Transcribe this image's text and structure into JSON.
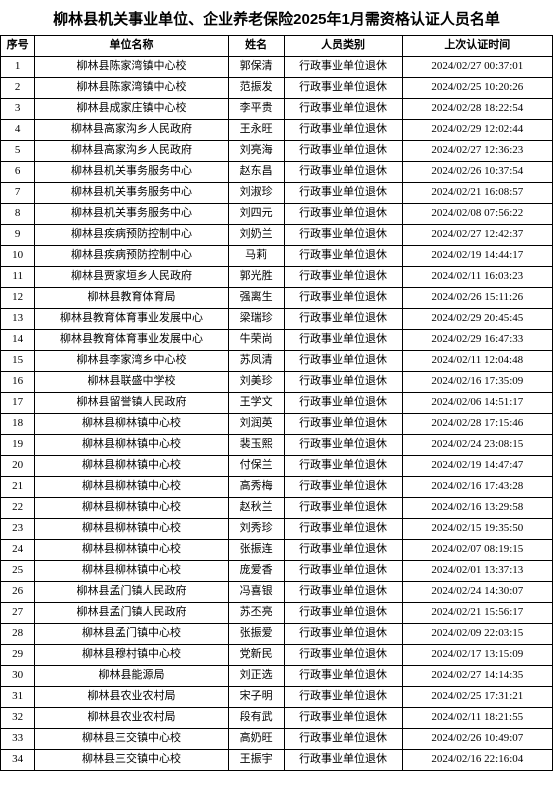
{
  "title": "柳林县机关事业单位、企业养老保险2025年1月需资格认证人员名单",
  "columns": [
    "序号",
    "单位名称",
    "姓名",
    "人员类别",
    "上次认证时间"
  ],
  "rows": [
    [
      "1",
      "柳林县陈家湾镇中心校",
      "郭保清",
      "行政事业单位退休",
      "2024/02/27 00:37:01"
    ],
    [
      "2",
      "柳林县陈家湾镇中心校",
      "范振发",
      "行政事业单位退休",
      "2024/02/25 10:20:26"
    ],
    [
      "3",
      "柳林县成家庄镇中心校",
      "李平贵",
      "行政事业单位退休",
      "2024/02/28 18:22:54"
    ],
    [
      "4",
      "柳林县高家沟乡人民政府",
      "王永旺",
      "行政事业单位退休",
      "2024/02/29 12:02:44"
    ],
    [
      "5",
      "柳林县高家沟乡人民政府",
      "刘亮海",
      "行政事业单位退休",
      "2024/02/27 12:36:23"
    ],
    [
      "6",
      "柳林县机关事务服务中心",
      "赵东昌",
      "行政事业单位退休",
      "2024/02/26 10:37:54"
    ],
    [
      "7",
      "柳林县机关事务服务中心",
      "刘淑珍",
      "行政事业单位退休",
      "2024/02/21 16:08:57"
    ],
    [
      "8",
      "柳林县机关事务服务中心",
      "刘四元",
      "行政事业单位退休",
      "2024/02/08 07:56:22"
    ],
    [
      "9",
      "柳林县疾病预防控制中心",
      "刘奶兰",
      "行政事业单位退休",
      "2024/02/27 12:42:37"
    ],
    [
      "10",
      "柳林县疾病预防控制中心",
      "马莉",
      "行政事业单位退休",
      "2024/02/19 14:44:17"
    ],
    [
      "11",
      "柳林县贾家垣乡人民政府",
      "郭光胜",
      "行政事业单位退休",
      "2024/02/11 16:03:23"
    ],
    [
      "12",
      "柳林县教育体育局",
      "强离生",
      "行政事业单位退休",
      "2024/02/26 15:11:26"
    ],
    [
      "13",
      "柳林县教育体育事业发展中心",
      "梁瑞珍",
      "行政事业单位退休",
      "2024/02/29 20:45:45"
    ],
    [
      "14",
      "柳林县教育体育事业发展中心",
      "牛荣尚",
      "行政事业单位退休",
      "2024/02/29 16:47:33"
    ],
    [
      "15",
      "柳林县李家湾乡中心校",
      "苏凤清",
      "行政事业单位退休",
      "2024/02/11 12:04:48"
    ],
    [
      "16",
      "柳林县联盛中学校",
      "刘美珍",
      "行政事业单位退休",
      "2024/02/16 17:35:09"
    ],
    [
      "17",
      "柳林县留誉镇人民政府",
      "王学文",
      "行政事业单位退休",
      "2024/02/06 14:51:17"
    ],
    [
      "18",
      "柳林县柳林镇中心校",
      "刘润英",
      "行政事业单位退休",
      "2024/02/28 17:15:46"
    ],
    [
      "19",
      "柳林县柳林镇中心校",
      "裴玉熙",
      "行政事业单位退休",
      "2024/02/24 23:08:15"
    ],
    [
      "20",
      "柳林县柳林镇中心校",
      "付保兰",
      "行政事业单位退休",
      "2024/02/19 14:47:47"
    ],
    [
      "21",
      "柳林县柳林镇中心校",
      "高秀梅",
      "行政事业单位退休",
      "2024/02/16 17:43:28"
    ],
    [
      "22",
      "柳林县柳林镇中心校",
      "赵秋兰",
      "行政事业单位退休",
      "2024/02/16 13:29:58"
    ],
    [
      "23",
      "柳林县柳林镇中心校",
      "刘秀珍",
      "行政事业单位退休",
      "2024/02/15 19:35:50"
    ],
    [
      "24",
      "柳林县柳林镇中心校",
      "张振连",
      "行政事业单位退休",
      "2024/02/07 08:19:15"
    ],
    [
      "25",
      "柳林县柳林镇中心校",
      "庞爱香",
      "行政事业单位退休",
      "2024/02/01 13:37:13"
    ],
    [
      "26",
      "柳林县孟门镇人民政府",
      "冯喜银",
      "行政事业单位退休",
      "2024/02/24 14:30:07"
    ],
    [
      "27",
      "柳林县孟门镇人民政府",
      "苏丕亮",
      "行政事业单位退休",
      "2024/02/21 15:56:17"
    ],
    [
      "28",
      "柳林县孟门镇中心校",
      "张振爱",
      "行政事业单位退休",
      "2024/02/09 22:03:15"
    ],
    [
      "29",
      "柳林县穆村镇中心校",
      "党新民",
      "行政事业单位退休",
      "2024/02/17 13:15:09"
    ],
    [
      "30",
      "柳林县能源局",
      "刘正选",
      "行政事业单位退休",
      "2024/02/27 14:14:35"
    ],
    [
      "31",
      "柳林县农业农村局",
      "宋子明",
      "行政事业单位退休",
      "2024/02/25 17:31:21"
    ],
    [
      "32",
      "柳林县农业农村局",
      "段有武",
      "行政事业单位退休",
      "2024/02/11 18:21:55"
    ],
    [
      "33",
      "柳林县三交镇中心校",
      "高奶旺",
      "行政事业单位退休",
      "2024/02/26 10:49:07"
    ],
    [
      "34",
      "柳林县三交镇中心校",
      "王振宇",
      "行政事业单位退休",
      "2024/02/16 22:16:04"
    ]
  ]
}
